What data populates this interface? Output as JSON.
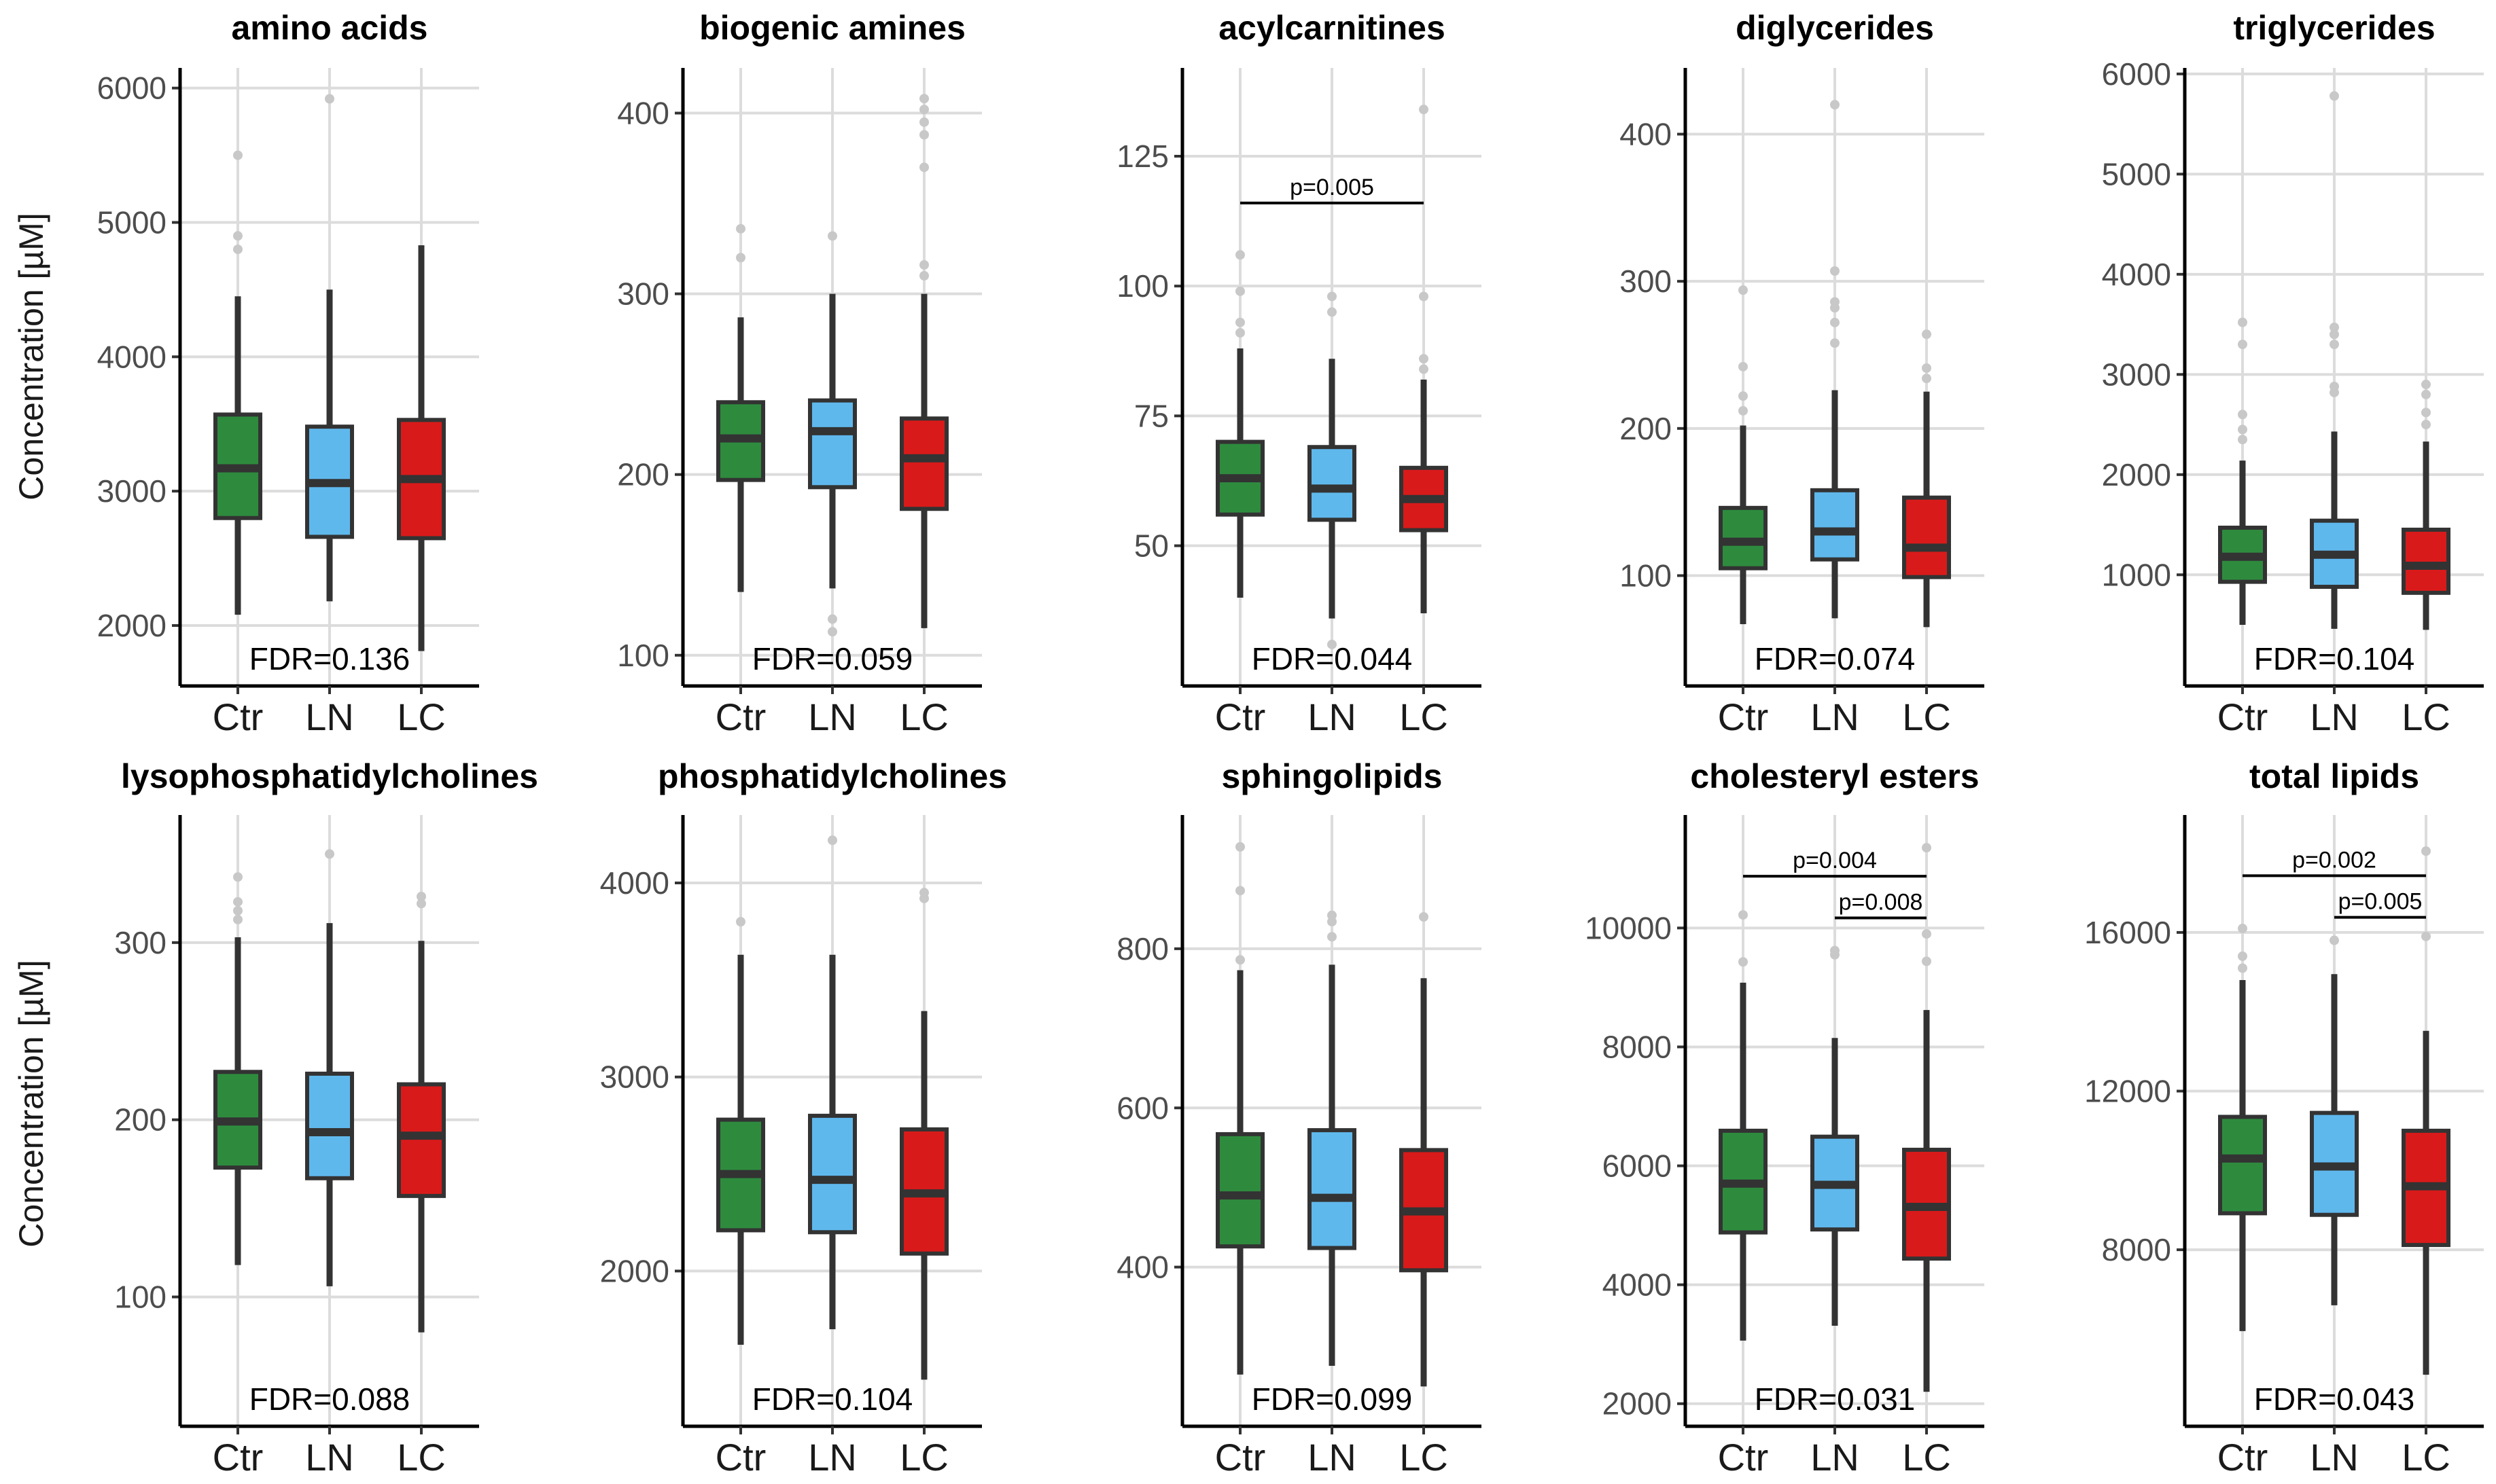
{
  "figure": {
    "ylabel": "Concentration [µM]",
    "groups": [
      "Ctr",
      "LN",
      "LC"
    ],
    "colors": {
      "Ctr": "#2e8b3e",
      "LN": "#5fb8ec",
      "LC": "#d91a1a"
    }
  },
  "chart_data": [
    {
      "type": "box",
      "title": "amino acids",
      "ylim": [
        1550,
        6150
      ],
      "ticks": [
        2000,
        3000,
        4000,
        5000,
        6000
      ],
      "fdr": "FDR=0.136",
      "categories": [
        "Ctr",
        "LN",
        "LC"
      ],
      "boxes": [
        {
          "group": "Ctr",
          "whislo": 2080,
          "q1": 2800,
          "med": 3170,
          "q3": 3570,
          "whishi": 4450,
          "outliers": [
            4800,
            4900,
            5500
          ]
        },
        {
          "group": "LN",
          "whislo": 2180,
          "q1": 2660,
          "med": 3060,
          "q3": 3480,
          "whishi": 4500,
          "outliers": [
            5920
          ]
        },
        {
          "group": "LC",
          "whislo": 1810,
          "q1": 2650,
          "med": 3090,
          "q3": 3530,
          "whishi": 4830,
          "outliers": []
        }
      ],
      "signif": []
    },
    {
      "type": "box",
      "title": "biogenic amines",
      "ylim": [
        83,
        425
      ],
      "ticks": [
        100,
        200,
        300,
        400
      ],
      "fdr": "FDR=0.059",
      "categories": [
        "Ctr",
        "LN",
        "LC"
      ],
      "boxes": [
        {
          "group": "Ctr",
          "whislo": 135,
          "q1": 197,
          "med": 220,
          "q3": 240,
          "whishi": 287,
          "outliers": [
            320,
            336
          ]
        },
        {
          "group": "LN",
          "whislo": 137,
          "q1": 193,
          "med": 224,
          "q3": 241,
          "whishi": 300,
          "outliers": [
            113,
            120,
            332
          ]
        },
        {
          "group": "LC",
          "whislo": 115,
          "q1": 181,
          "med": 209,
          "q3": 231,
          "whishi": 300,
          "outliers": [
            310,
            316,
            370,
            388,
            395,
            402,
            408
          ]
        }
      ],
      "signif": []
    },
    {
      "type": "box",
      "title": "acylcarnitines",
      "ylim": [
        23,
        142
      ],
      "ticks": [
        50,
        75,
        100,
        125
      ],
      "fdr": "FDR=0.044",
      "categories": [
        "Ctr",
        "LN",
        "LC"
      ],
      "boxes": [
        {
          "group": "Ctr",
          "whislo": 40,
          "q1": 56,
          "med": 63,
          "q3": 70,
          "whishi": 88,
          "outliers": [
            91,
            93,
            99,
            106
          ]
        },
        {
          "group": "LN",
          "whislo": 36,
          "q1": 55,
          "med": 61,
          "q3": 69,
          "whishi": 86,
          "outliers": [
            31,
            95,
            98
          ]
        },
        {
          "group": "LC",
          "whislo": 37,
          "q1": 53,
          "med": 59,
          "q3": 65,
          "whishi": 82,
          "outliers": [
            84,
            86,
            98,
            134
          ]
        }
      ],
      "signif": [
        {
          "from": "Ctr",
          "to": "LC",
          "y": 116,
          "label": "p=0.005"
        }
      ]
    },
    {
      "type": "box",
      "title": "diglycerides",
      "ylim": [
        25,
        445
      ],
      "ticks": [
        100,
        200,
        300,
        400
      ],
      "fdr": "FDR=0.074",
      "categories": [
        "Ctr",
        "LN",
        "LC"
      ],
      "boxes": [
        {
          "group": "Ctr",
          "whislo": 67,
          "q1": 105,
          "med": 123,
          "q3": 146,
          "whishi": 202,
          "outliers": [
            212,
            222,
            242,
            294
          ]
        },
        {
          "group": "LN",
          "whislo": 71,
          "q1": 111,
          "med": 130,
          "q3": 158,
          "whishi": 226,
          "outliers": [
            258,
            272,
            282,
            286,
            307,
            420
          ]
        },
        {
          "group": "LC",
          "whislo": 65,
          "q1": 99,
          "med": 119,
          "q3": 153,
          "whishi": 225,
          "outliers": [
            234,
            241,
            264
          ]
        }
      ],
      "signif": []
    },
    {
      "type": "box",
      "title": "triglycerides",
      "ylim": [
        -110,
        6060
      ],
      "ticks": [
        1000,
        2000,
        3000,
        4000,
        5000,
        6000
      ],
      "fdr": "FDR=0.104",
      "categories": [
        "Ctr",
        "LN",
        "LC"
      ],
      "boxes": [
        {
          "group": "Ctr",
          "whislo": 500,
          "q1": 930,
          "med": 1180,
          "q3": 1470,
          "whishi": 2140,
          "outliers": [
            2350,
            2450,
            2600,
            3300,
            3520
          ]
        },
        {
          "group": "LN",
          "whislo": 460,
          "q1": 880,
          "med": 1200,
          "q3": 1540,
          "whishi": 2430,
          "outliers": [
            2820,
            2880,
            3300,
            3400,
            3470,
            5780
          ]
        },
        {
          "group": "LC",
          "whislo": 450,
          "q1": 820,
          "med": 1090,
          "q3": 1450,
          "whishi": 2330,
          "outliers": [
            2500,
            2620,
            2800,
            2900
          ]
        }
      ],
      "signif": []
    },
    {
      "type": "box",
      "title": "lysophosphatidylcholines",
      "ylim": [
        27,
        372
      ],
      "ticks": [
        100,
        200,
        300
      ],
      "fdr": "FDR=0.088",
      "categories": [
        "Ctr",
        "LN",
        "LC"
      ],
      "boxes": [
        {
          "group": "Ctr",
          "whislo": 118,
          "q1": 173,
          "med": 199,
          "q3": 227,
          "whishi": 303,
          "outliers": [
            313,
            318,
            323,
            337
          ]
        },
        {
          "group": "LN",
          "whislo": 106,
          "q1": 167,
          "med": 193,
          "q3": 226,
          "whishi": 311,
          "outliers": [
            350
          ]
        },
        {
          "group": "LC",
          "whislo": 80,
          "q1": 157,
          "med": 191,
          "q3": 220,
          "whishi": 301,
          "outliers": [
            322,
            326
          ]
        }
      ],
      "signif": []
    },
    {
      "type": "box",
      "title": "phosphatidylcholines",
      "ylim": [
        1200,
        4350
      ],
      "ticks": [
        2000,
        3000,
        4000
      ],
      "fdr": "FDR=0.104",
      "categories": [
        "Ctr",
        "LN",
        "LC"
      ],
      "boxes": [
        {
          "group": "Ctr",
          "whislo": 1620,
          "q1": 2210,
          "med": 2500,
          "q3": 2780,
          "whishi": 3630,
          "outliers": [
            3800
          ]
        },
        {
          "group": "LN",
          "whislo": 1700,
          "q1": 2200,
          "med": 2470,
          "q3": 2800,
          "whishi": 3630,
          "outliers": [
            4220
          ]
        },
        {
          "group": "LC",
          "whislo": 1440,
          "q1": 2090,
          "med": 2400,
          "q3": 2730,
          "whishi": 3340,
          "outliers": [
            3920,
            3950
          ]
        }
      ],
      "signif": []
    },
    {
      "type": "box",
      "title": "sphingolipids",
      "ylim": [
        200,
        968
      ],
      "ticks": [
        400,
        600,
        800
      ],
      "fdr": "FDR=0.099",
      "categories": [
        "Ctr",
        "LN",
        "LC"
      ],
      "boxes": [
        {
          "group": "Ctr",
          "whislo": 265,
          "q1": 426,
          "med": 490,
          "q3": 567,
          "whishi": 773,
          "outliers": [
            786,
            873,
            928
          ]
        },
        {
          "group": "LN",
          "whislo": 276,
          "q1": 424,
          "med": 487,
          "q3": 572,
          "whishi": 780,
          "outliers": [
            815,
            834,
            842
          ]
        },
        {
          "group": "LC",
          "whislo": 250,
          "q1": 396,
          "med": 470,
          "q3": 547,
          "whishi": 763,
          "outliers": [
            840
          ]
        }
      ],
      "signif": []
    },
    {
      "type": "box",
      "title": "cholesteryl esters",
      "ylim": [
        1620,
        11900
      ],
      "ticks": [
        2000,
        4000,
        6000,
        8000,
        10000
      ],
      "fdr": "FDR=0.031",
      "categories": [
        "Ctr",
        "LN",
        "LC"
      ],
      "boxes": [
        {
          "group": "Ctr",
          "whislo": 3060,
          "q1": 4880,
          "med": 5700,
          "q3": 6590,
          "whishi": 9080,
          "outliers": [
            9430,
            10220
          ]
        },
        {
          "group": "LN",
          "whislo": 3310,
          "q1": 4930,
          "med": 5680,
          "q3": 6490,
          "whishi": 8150,
          "outliers": [
            9550,
            9620
          ]
        },
        {
          "group": "LC",
          "whislo": 2200,
          "q1": 4440,
          "med": 5310,
          "q3": 6270,
          "whishi": 8620,
          "outliers": [
            9440,
            9900,
            11350
          ]
        }
      ],
      "signif": [
        {
          "from": "Ctr",
          "to": "LC",
          "y": 10870,
          "label": "p=0.004"
        },
        {
          "from": "LN",
          "to": "LC",
          "y": 10170,
          "label": "p=0.008"
        }
      ]
    },
    {
      "type": "box",
      "title": "total lipids",
      "ylim": [
        3550,
        18960
      ],
      "ticks": [
        8000,
        12000,
        16000
      ],
      "fdr": "FDR=0.043",
      "categories": [
        "Ctr",
        "LN",
        "LC"
      ],
      "boxes": [
        {
          "group": "Ctr",
          "whislo": 5950,
          "q1": 8920,
          "med": 10300,
          "q3": 11350,
          "whishi": 14800,
          "outliers": [
            15100,
            15400,
            16100
          ]
        },
        {
          "group": "LN",
          "whislo": 6600,
          "q1": 8880,
          "med": 10100,
          "q3": 11450,
          "whishi": 14950,
          "outliers": [
            15800
          ]
        },
        {
          "group": "LC",
          "whislo": 4850,
          "q1": 8120,
          "med": 9600,
          "q3": 11000,
          "whishi": 13520,
          "outliers": [
            15900,
            18050
          ]
        }
      ],
      "signif": [
        {
          "from": "Ctr",
          "to": "LC",
          "y": 17430,
          "label": "p=0.002"
        },
        {
          "from": "LN",
          "to": "LC",
          "y": 16380,
          "label": "p=0.005"
        }
      ]
    }
  ]
}
